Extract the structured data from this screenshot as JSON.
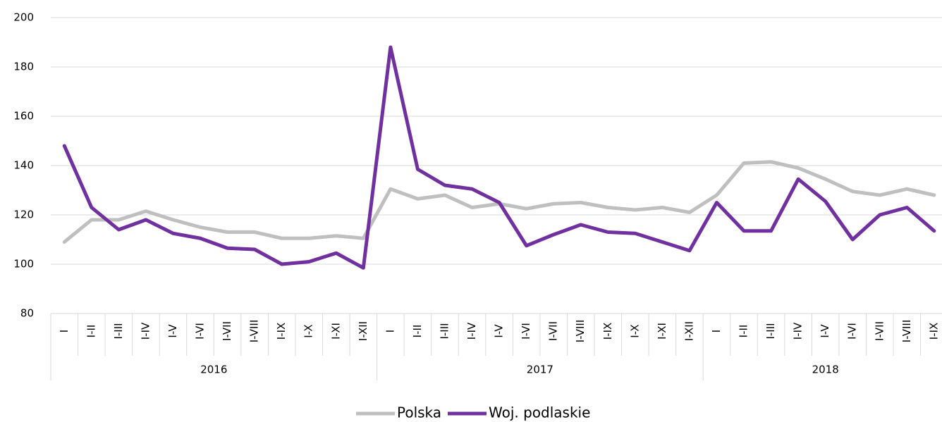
{
  "chart_data": {
    "type": "line",
    "categories": [
      "I",
      "I-II",
      "I-III",
      "I-IV",
      "I-V",
      "I-VI",
      "I-VII",
      "I-VIII",
      "I-IX",
      "I-X",
      "I-XI",
      "I-XII",
      "I",
      "I-II",
      "I-III",
      "I-IV",
      "I-V",
      "I-VI",
      "I-VII",
      "I-VIII",
      "I-IX",
      "I-X",
      "I-XI",
      "I-XII",
      "I",
      "I-II",
      "I-III",
      "I-IV",
      "I-V",
      "I-VI",
      "I-VII",
      "I-VIII",
      "I-IX"
    ],
    "x_groups": [
      "2016",
      "2017",
      "2018"
    ],
    "series": [
      {
        "name": "Polska",
        "color": "#bfbfbf",
        "values": [
          109,
          118,
          118,
          121.5,
          118,
          115,
          113,
          113,
          110.5,
          110.5,
          111.5,
          110.5,
          130.5,
          126.5,
          128,
          123,
          124.5,
          122.5,
          124.5,
          125,
          123,
          122,
          123,
          121,
          128,
          141,
          141.5,
          139,
          134.5,
          129.5,
          128,
          130.5,
          128
        ]
      },
      {
        "name": "Woj. podlaskie",
        "color": "#7030a0",
        "values": [
          148,
          123,
          114,
          118,
          112.5,
          110.5,
          106.5,
          106,
          100,
          101,
          104.5,
          98.5,
          188,
          138.5,
          132,
          130.5,
          125,
          107.5,
          112,
          116,
          113,
          112.5,
          109,
          105.5,
          125,
          113.5,
          113.5,
          134.5,
          125.5,
          110,
          120,
          123,
          113.5
        ]
      }
    ],
    "ylim": [
      80,
      200
    ],
    "yticks": [
      80,
      100,
      120,
      140,
      160,
      180,
      200
    ],
    "grid": true,
    "legend": "bottom"
  }
}
